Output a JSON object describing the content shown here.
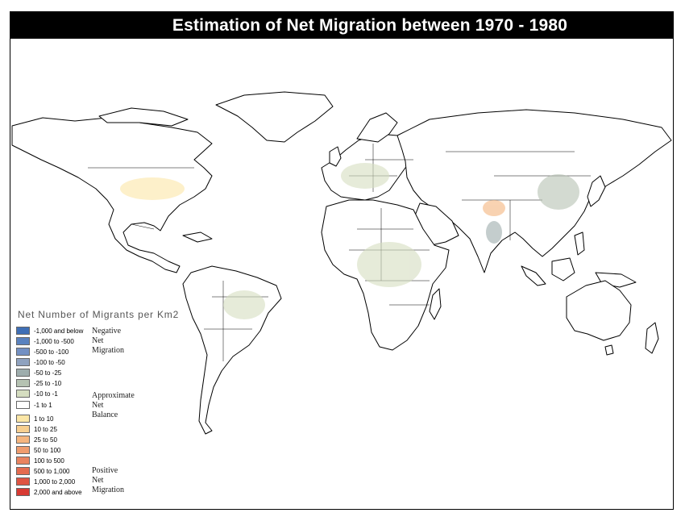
{
  "title": "Estimation of Net Migration between 1970 - 1980",
  "legend": {
    "title": "Net Number of Migrants per Km2",
    "items": [
      {
        "label": "-1,000 and below",
        "color": "#3f6fb6"
      },
      {
        "label": "-1,000 to -500",
        "color": "#5a82bf"
      },
      {
        "label": "-500 to -100",
        "color": "#7390c3"
      },
      {
        "label": "-100 to -50",
        "color": "#8fa2bf"
      },
      {
        "label": "-50 to -25",
        "color": "#9eadad"
      },
      {
        "label": "-25 to -10",
        "color": "#b5c2b2"
      },
      {
        "label": "-10 to -1",
        "color": "#d5ddc0"
      },
      {
        "label": "-1 to 1",
        "color": "#ffffff"
      },
      {
        "label": "1 to 10",
        "color": "#fbe6a6"
      },
      {
        "label": "10 to 25",
        "color": "#f7cf90"
      },
      {
        "label": "25 to 50",
        "color": "#f5b57e"
      },
      {
        "label": "50 to 100",
        "color": "#ef9c6e"
      },
      {
        "label": "100 to 500",
        "color": "#e9835f"
      },
      {
        "label": "500 to 1,000",
        "color": "#e46b4f"
      },
      {
        "label": "1,000 to 2,000",
        "color": "#df5442"
      },
      {
        "label": "2,000 and above",
        "color": "#d83a33"
      }
    ],
    "groups": [
      {
        "lines": [
          "Negative",
          "Net",
          "Migration"
        ]
      },
      {
        "lines": [
          "Approximate",
          "Net",
          "Balance"
        ]
      },
      {
        "lines": [
          "Positive",
          "Net",
          "Migration"
        ]
      }
    ]
  }
}
